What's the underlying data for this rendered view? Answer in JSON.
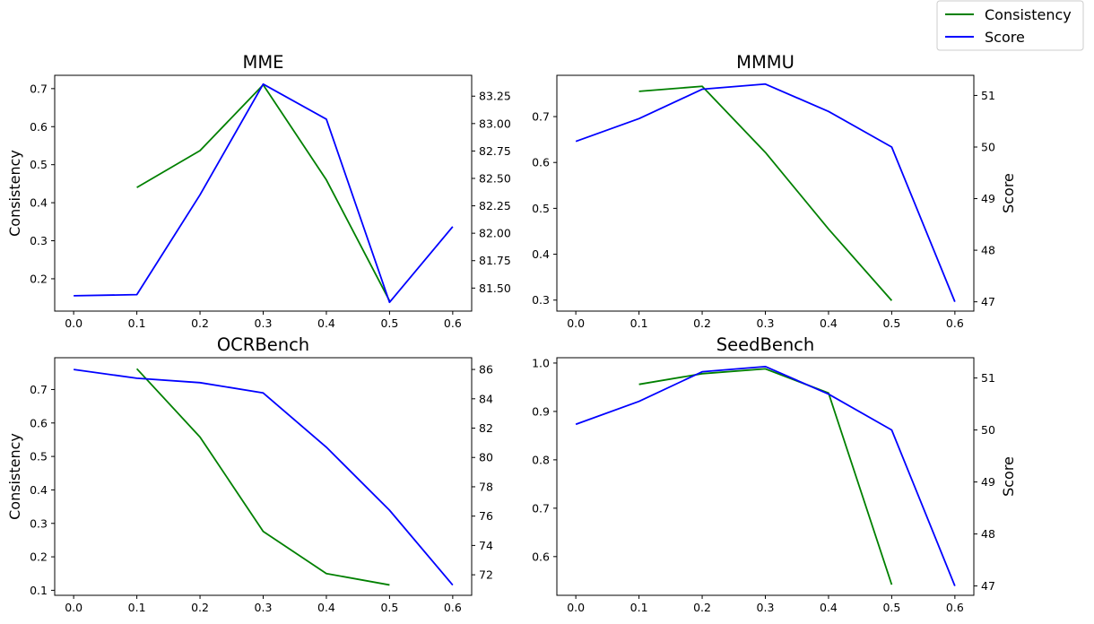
{
  "colors": {
    "consistency": "#008000",
    "score": "#0000ff"
  },
  "legend": {
    "placement": "top-right",
    "entries": [
      "Consistency",
      "Score"
    ]
  },
  "chart_data": [
    {
      "type": "line",
      "title": "MME",
      "xlabel": "",
      "ylabel_left": "Consistency",
      "ylabel_right": "",
      "xlim": [
        -0.03,
        0.63
      ],
      "xticks": [
        0.0,
        0.1,
        0.2,
        0.3,
        0.4,
        0.5,
        0.6
      ],
      "xtick_labels": [
        "0.0",
        "0.1",
        "0.2",
        "0.3",
        "0.4",
        "0.5",
        "0.6"
      ],
      "ylim_left": [
        0.115,
        0.735
      ],
      "yticks_left": [
        0.2,
        0.3,
        0.4,
        0.5,
        0.6,
        0.7
      ],
      "ytick_labels_left": [
        "0.2",
        "0.3",
        "0.4",
        "0.5",
        "0.6",
        "0.7"
      ],
      "ylim_right": [
        81.29,
        83.44
      ],
      "yticks_right": [
        81.5,
        81.75,
        82.0,
        82.25,
        82.5,
        82.75,
        83.0,
        83.25
      ],
      "ytick_labels_right": [
        "81.50",
        "81.75",
        "82.00",
        "82.25",
        "82.50",
        "82.75",
        "83.00",
        "83.25"
      ],
      "series": [
        {
          "name": "Consistency",
          "axis": "left",
          "x": [
            0.1,
            0.2,
            0.3,
            0.4,
            0.5
          ],
          "values": [
            0.44,
            0.537,
            0.71,
            0.46,
            0.142
          ]
        },
        {
          "name": "Score",
          "axis": "right",
          "x": [
            0.0,
            0.1,
            0.2,
            0.3,
            0.4,
            0.5,
            0.6
          ],
          "values": [
            81.43,
            81.44,
            82.35,
            83.36,
            83.04,
            81.37,
            82.06
          ]
        }
      ]
    },
    {
      "type": "line",
      "title": "MMMU",
      "xlabel": "",
      "ylabel_left": "",
      "ylabel_right": "Score",
      "xlim": [
        -0.03,
        0.63
      ],
      "xticks": [
        0.0,
        0.1,
        0.2,
        0.3,
        0.4,
        0.5,
        0.6
      ],
      "xtick_labels": [
        "0.0",
        "0.1",
        "0.2",
        "0.3",
        "0.4",
        "0.5",
        "0.6"
      ],
      "ylim_left": [
        0.276,
        0.79
      ],
      "yticks_left": [
        0.3,
        0.4,
        0.5,
        0.6,
        0.7
      ],
      "ytick_labels_left": [
        "0.3",
        "0.4",
        "0.5",
        "0.6",
        "0.7"
      ],
      "ylim_right": [
        46.82,
        51.39
      ],
      "yticks_right": [
        47,
        48,
        49,
        50,
        51
      ],
      "ytick_labels_right": [
        "47",
        "48",
        "49",
        "50",
        "51"
      ],
      "series": [
        {
          "name": "Consistency",
          "axis": "left",
          "x": [
            0.1,
            0.2,
            0.3,
            0.4,
            0.5
          ],
          "values": [
            0.755,
            0.766,
            0.622,
            0.455,
            0.299
          ]
        },
        {
          "name": "Score",
          "axis": "right",
          "x": [
            0.0,
            0.1,
            0.2,
            0.3,
            0.4,
            0.5,
            0.6
          ],
          "values": [
            50.11,
            50.55,
            51.12,
            51.22,
            50.69,
            50.0,
            47.0
          ]
        }
      ]
    },
    {
      "type": "line",
      "title": "OCRBench",
      "xlabel": "",
      "ylabel_left": "Consistency",
      "ylabel_right": "",
      "xlim": [
        -0.03,
        0.63
      ],
      "xticks": [
        0.0,
        0.1,
        0.2,
        0.3,
        0.4,
        0.5,
        0.6
      ],
      "xtick_labels": [
        "0.0",
        "0.1",
        "0.2",
        "0.3",
        "0.4",
        "0.5",
        "0.6"
      ],
      "ylim_left": [
        0.085,
        0.795
      ],
      "yticks_left": [
        0.1,
        0.2,
        0.3,
        0.4,
        0.5,
        0.6,
        0.7
      ],
      "ytick_labels_left": [
        "0.1",
        "0.2",
        "0.3",
        "0.4",
        "0.5",
        "0.6",
        "0.7"
      ],
      "ylim_right": [
        70.6,
        86.8
      ],
      "yticks_right": [
        72,
        74,
        76,
        78,
        80,
        82,
        84,
        86
      ],
      "ytick_labels_right": [
        "72",
        "74",
        "76",
        "78",
        "80",
        "82",
        "84",
        "86"
      ],
      "series": [
        {
          "name": "Consistency",
          "axis": "left",
          "x": [
            0.1,
            0.2,
            0.3,
            0.4,
            0.5
          ],
          "values": [
            0.762,
            0.558,
            0.276,
            0.15,
            0.116
          ]
        },
        {
          "name": "Score",
          "axis": "right",
          "x": [
            0.0,
            0.1,
            0.2,
            0.3,
            0.4,
            0.5,
            0.6
          ],
          "values": [
            86.0,
            85.4,
            85.1,
            84.4,
            80.7,
            76.4,
            71.3
          ]
        }
      ]
    },
    {
      "type": "line",
      "title": "SeedBench",
      "xlabel": "",
      "ylabel_left": "",
      "ylabel_right": "Score",
      "xlim": [
        -0.03,
        0.63
      ],
      "xticks": [
        0.0,
        0.1,
        0.2,
        0.3,
        0.4,
        0.5,
        0.6
      ],
      "xtick_labels": [
        "0.0",
        "0.1",
        "0.2",
        "0.3",
        "0.4",
        "0.5",
        "0.6"
      ],
      "ylim_left": [
        0.52,
        1.011
      ],
      "yticks_left": [
        0.6,
        0.7,
        0.8,
        0.9,
        1.0
      ],
      "ytick_labels_left": [
        "0.6",
        "0.7",
        "0.8",
        "0.9",
        "1.0"
      ],
      "ylim_right": [
        46.82,
        51.39
      ],
      "yticks_right": [
        47,
        48,
        49,
        50,
        51
      ],
      "ytick_labels_right": [
        "47",
        "48",
        "49",
        "50",
        "51"
      ],
      "series": [
        {
          "name": "Consistency",
          "axis": "left",
          "x": [
            0.1,
            0.2,
            0.3,
            0.4,
            0.5
          ],
          "values": [
            0.956,
            0.978,
            0.988,
            0.938,
            0.542
          ]
        },
        {
          "name": "Score",
          "axis": "right",
          "x": [
            0.0,
            0.1,
            0.2,
            0.3,
            0.4,
            0.5,
            0.6
          ],
          "values": [
            50.11,
            50.55,
            51.12,
            51.22,
            50.69,
            50.0,
            47.0
          ]
        }
      ]
    }
  ]
}
